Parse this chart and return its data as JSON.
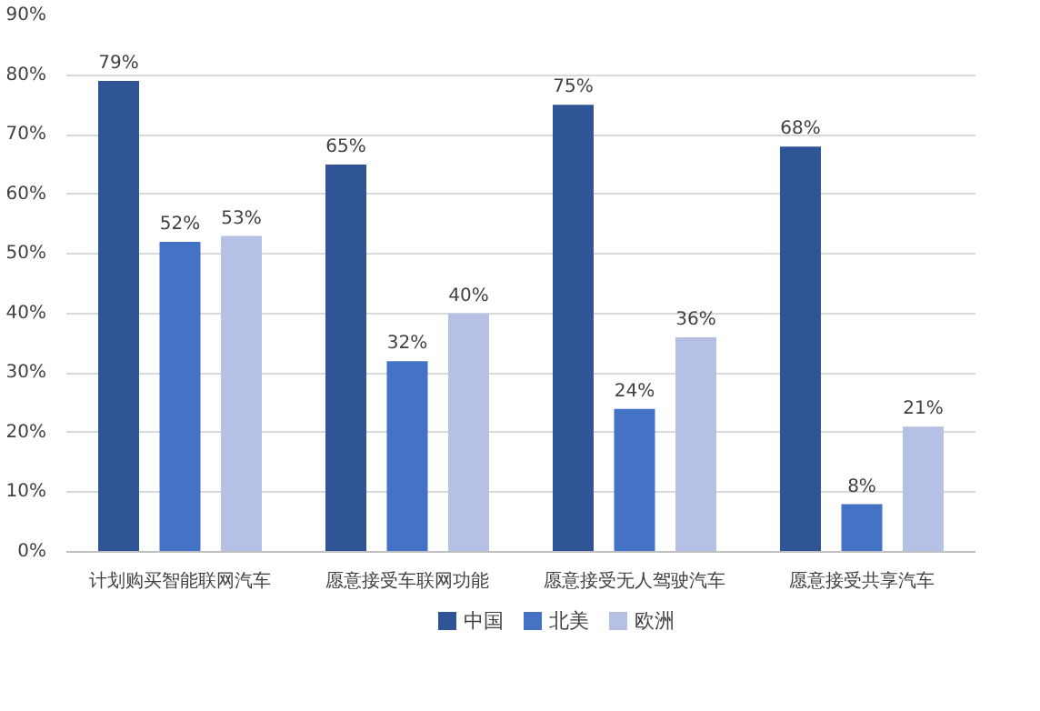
{
  "chart_data": {
    "type": "bar",
    "categories": [
      "计划购买智能联网汽车",
      "愿意接受车联网功能",
      "愿意接受无人驾驶汽车",
      "愿意接受共享汽车"
    ],
    "series": [
      {
        "name": "中国",
        "color": "#2f5597",
        "values": [
          79,
          65,
          75,
          68
        ],
        "value_labels": [
          "79%",
          "65%",
          "75%",
          "68%"
        ]
      },
      {
        "name": "北美",
        "color": "#4472c4",
        "values": [
          52,
          32,
          24,
          8
        ],
        "value_labels": [
          "52%",
          "32%",
          "24%",
          "8%"
        ]
      },
      {
        "name": "欧洲",
        "color": "#b4c0e4",
        "values": [
          53,
          40,
          36,
          21
        ],
        "value_labels": [
          "53%",
          "40%",
          "36%",
          "21%"
        ]
      }
    ],
    "ylim": [
      0,
      90
    ],
    "yticks": [
      {
        "value": 0,
        "label": "0%"
      },
      {
        "value": 10,
        "label": "10%"
      },
      {
        "value": 20,
        "label": "20%"
      },
      {
        "value": 30,
        "label": "30%"
      },
      {
        "value": 40,
        "label": "40%"
      },
      {
        "value": 50,
        "label": "50%"
      },
      {
        "value": 60,
        "label": "60%"
      },
      {
        "value": 70,
        "label": "70%"
      },
      {
        "value": 80,
        "label": "80%"
      },
      {
        "value": 90,
        "label": "90%"
      }
    ],
    "grid": "y",
    "legend": "bottom"
  }
}
